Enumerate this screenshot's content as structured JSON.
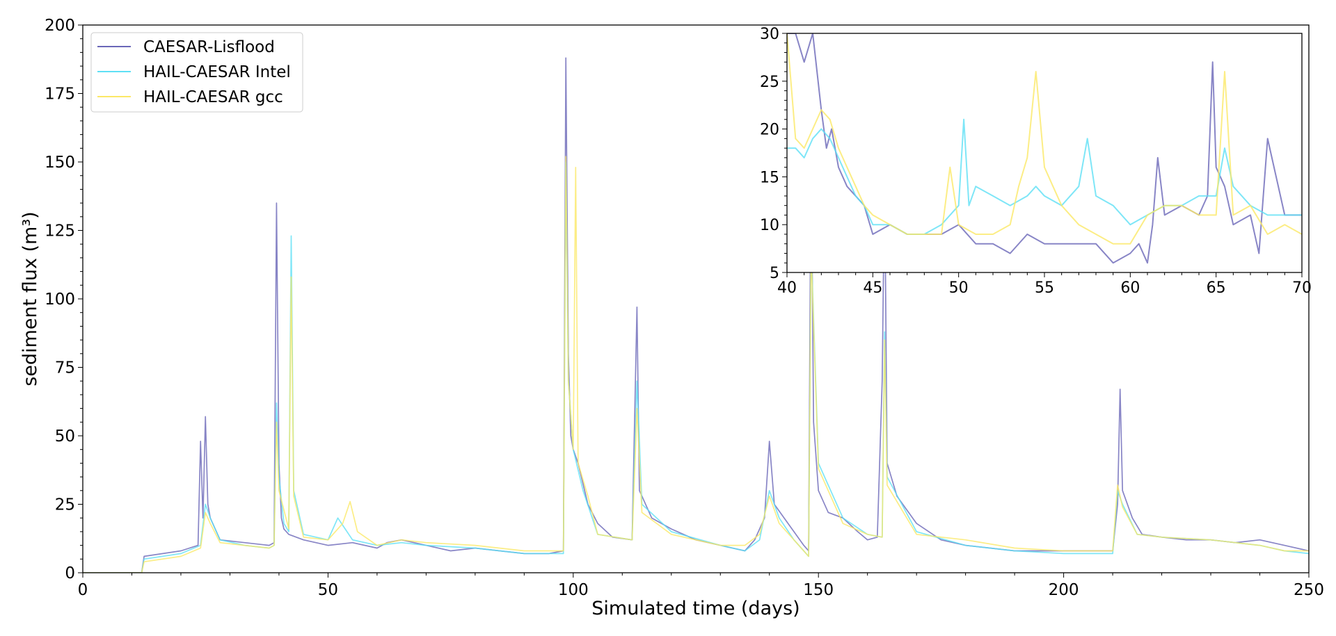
{
  "chart_data": [
    {
      "type": "line",
      "xlabel": "Simulated time (days)",
      "ylabel": "sediment flux (m³)",
      "xlim": [
        0,
        250
      ],
      "ylim": [
        0,
        200
      ],
      "xticks": [
        0,
        50,
        100,
        150,
        200,
        250
      ],
      "yticks": [
        0,
        25,
        50,
        75,
        100,
        125,
        150,
        175,
        200
      ],
      "grid": false,
      "legend": "top-left",
      "series": [
        {
          "name": "CAESAR-Lisflood",
          "color": "#6a66b8",
          "x": [
            0,
            12,
            12.5,
            20,
            23.5,
            24,
            24.5,
            25,
            25.5,
            26,
            28,
            33,
            38,
            39,
            39.5,
            40,
            40.5,
            41,
            42,
            45,
            50,
            55,
            60,
            62,
            65,
            70,
            75,
            80,
            85,
            90,
            95,
            98,
            98.5,
            99,
            99.5,
            100,
            101,
            103,
            105,
            108,
            112,
            113,
            113.5,
            114,
            116,
            120,
            125,
            130,
            135,
            137,
            139,
            140,
            141,
            143,
            145,
            147,
            148,
            148.5,
            149,
            150,
            152,
            155,
            158,
            160,
            162,
            163,
            163.5,
            164,
            166,
            170,
            175,
            180,
            185,
            190,
            195,
            200,
            205,
            210,
            211,
            211.5,
            212,
            214,
            216,
            220,
            225,
            230,
            235,
            240,
            245,
            250
          ],
          "y": [
            0,
            0,
            6,
            8,
            10,
            48,
            20,
            57,
            25,
            20,
            12,
            11,
            10,
            11,
            135,
            40,
            20,
            16,
            14,
            12,
            10,
            11,
            9,
            11,
            12,
            10,
            8,
            9,
            8,
            7,
            7,
            8,
            188,
            80,
            50,
            45,
            40,
            25,
            18,
            13,
            12,
            97,
            30,
            28,
            20,
            16,
            12,
            10,
            8,
            12,
            20,
            48,
            25,
            20,
            15,
            10,
            8,
            160,
            55,
            30,
            22,
            20,
            15,
            12,
            13,
            70,
            145,
            40,
            28,
            18,
            12,
            10,
            9,
            8,
            8,
            8,
            8,
            8,
            25,
            67,
            30,
            20,
            14,
            13,
            12,
            12,
            11,
            12,
            10,
            8
          ]
        },
        {
          "name": "HAIL-CAESAR Intel",
          "color": "#5ee0f5",
          "x": [
            0,
            12,
            12.5,
            20,
            24,
            25,
            26,
            28,
            33,
            38,
            39,
            39.5,
            40,
            41,
            42,
            42.5,
            43,
            45,
            50,
            52,
            55,
            60,
            65,
            70,
            80,
            85,
            90,
            95,
            98,
            98.5,
            99,
            100,
            102,
            105,
            112,
            113,
            114,
            120,
            130,
            135,
            138,
            140,
            142,
            145,
            147,
            148,
            148.5,
            150,
            155,
            160,
            163,
            163.5,
            164,
            170,
            180,
            190,
            200,
            210,
            211,
            212,
            215,
            220,
            230,
            240,
            245,
            250
          ],
          "y": [
            0,
            0,
            5,
            7,
            10,
            25,
            20,
            12,
            10,
            9,
            10,
            62,
            35,
            18,
            15,
            123,
            30,
            14,
            12,
            20,
            12,
            10,
            11,
            10,
            9,
            8,
            7,
            7,
            7,
            150,
            70,
            45,
            30,
            14,
            12,
            70,
            25,
            15,
            10,
            8,
            12,
            30,
            20,
            12,
            8,
            6,
            120,
            40,
            20,
            14,
            13,
            88,
            35,
            15,
            10,
            8,
            7,
            7,
            30,
            25,
            14,
            13,
            12,
            10,
            8,
            7
          ]
        },
        {
          "name": "HAIL-CAESAR gcc",
          "color": "#fbe866",
          "x": [
            0,
            12,
            12.5,
            20,
            24,
            25,
            26,
            28,
            33,
            38,
            39,
            39.5,
            40,
            42,
            42.5,
            43,
            45,
            50,
            53,
            54.5,
            56,
            60,
            65,
            70,
            80,
            90,
            95,
            98,
            98.5,
            99,
            100,
            100.5,
            101,
            103,
            105,
            112,
            113,
            114,
            120,
            130,
            135,
            138,
            140,
            142,
            145,
            147,
            148,
            148.5,
            150,
            155,
            160,
            163,
            163.5,
            164,
            170,
            180,
            190,
            200,
            210,
            211,
            212,
            215,
            220,
            230,
            240,
            245,
            250
          ],
          "y": [
            0,
            0,
            4,
            6,
            9,
            22,
            18,
            11,
            10,
            9,
            10,
            55,
            30,
            16,
            108,
            28,
            13,
            12,
            18,
            26,
            15,
            10,
            12,
            11,
            10,
            8,
            8,
            8,
            152,
            70,
            45,
            148,
            40,
            28,
            14,
            12,
            60,
            22,
            14,
            10,
            10,
            14,
            28,
            18,
            12,
            8,
            6,
            118,
            38,
            18,
            14,
            13,
            85,
            32,
            14,
            12,
            9,
            8,
            8,
            32,
            24,
            14,
            13,
            12,
            10,
            8,
            8
          ]
        }
      ]
    },
    {
      "type": "line",
      "xlim": [
        40,
        70
      ],
      "ylim": [
        5,
        30
      ],
      "xticks": [
        40,
        45,
        50,
        55,
        60,
        65,
        70
      ],
      "yticks": [
        5,
        10,
        15,
        20,
        25,
        30
      ],
      "grid": false,
      "series": [
        {
          "name": "CAESAR-Lisflood",
          "color": "#6a66b8",
          "x": [
            40,
            40.5,
            41,
            41.5,
            42,
            42.3,
            42.6,
            43,
            43.5,
            44,
            44.5,
            45,
            46,
            47,
            48,
            49,
            50,
            51,
            52,
            53,
            54,
            55,
            56,
            57,
            58,
            59,
            60,
            60.5,
            61,
            61.3,
            61.6,
            62,
            63,
            64,
            64.5,
            64.8,
            65,
            65.5,
            66,
            67,
            67.5,
            68,
            69,
            70
          ],
          "y": [
            30,
            30,
            27,
            30,
            22,
            18,
            20,
            16,
            14,
            13,
            12,
            9,
            10,
            9,
            9,
            9,
            10,
            8,
            8,
            7,
            9,
            8,
            8,
            8,
            8,
            6,
            7,
            8,
            6,
            10,
            17,
            11,
            12,
            11,
            13,
            27,
            16,
            14,
            10,
            11,
            7,
            19,
            11,
            11
          ]
        },
        {
          "name": "HAIL-CAESAR Intel",
          "color": "#5ee0f5",
          "x": [
            40,
            40.5,
            41,
            41.5,
            42,
            42.5,
            43,
            43.5,
            44,
            44.5,
            45,
            46,
            47,
            48,
            49,
            50,
            50.3,
            50.6,
            51,
            52,
            53,
            54,
            54.5,
            55,
            56,
            57,
            57.5,
            58,
            59,
            60,
            61,
            62,
            63,
            64,
            65,
            65.5,
            66,
            67,
            68,
            69,
            70
          ],
          "y": [
            18,
            18,
            17,
            19,
            20,
            19,
            17,
            15,
            13,
            12,
            10,
            10,
            9,
            9,
            10,
            12,
            21,
            12,
            14,
            13,
            12,
            13,
            14,
            13,
            12,
            14,
            19,
            13,
            12,
            10,
            11,
            12,
            12,
            13,
            13,
            18,
            14,
            12,
            11,
            11,
            11
          ]
        },
        {
          "name": "HAIL-CAESAR gcc",
          "color": "#fbe866",
          "x": [
            40,
            40.5,
            41,
            41.5,
            42,
            42.5,
            43,
            43.5,
            44,
            44.5,
            45,
            46,
            47,
            48,
            49,
            49.5,
            50,
            51,
            52,
            53,
            53.5,
            54,
            54.5,
            55,
            55.5,
            56,
            57,
            58,
            59,
            60,
            61,
            62,
            63,
            64,
            65,
            65.5,
            66,
            67,
            68,
            69,
            70
          ],
          "y": [
            30,
            19,
            18,
            20,
            22,
            21,
            18,
            16,
            14,
            12,
            11,
            10,
            9,
            9,
            9,
            16,
            10,
            9,
            9,
            10,
            14,
            17,
            26,
            16,
            14,
            12,
            10,
            9,
            8,
            8,
            11,
            12,
            12,
            11,
            11,
            26,
            11,
            12,
            9,
            10,
            9
          ]
        }
      ]
    }
  ]
}
